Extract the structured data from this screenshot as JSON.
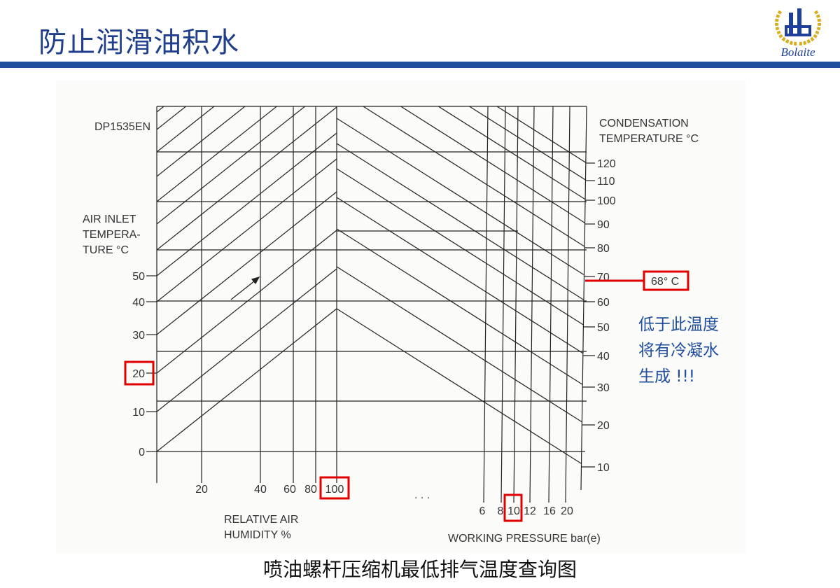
{
  "slide": {
    "title": "防止润滑油积水",
    "caption": "喷油螺杆压缩机最低排气温度查询图",
    "note_lines": [
      "低于此温度",
      "将有冷凝水",
      "生成 !!!"
    ],
    "logo_text": "Bolaite",
    "accent_color": "#1f4e9c",
    "highlight_color": "#e00000"
  },
  "chart_data": {
    "type": "line",
    "code": "DP1535EN",
    "left_axis": {
      "label_lines": [
        "AIR INLET",
        "TEMPERA-",
        "TURE   °C"
      ],
      "ticks": [
        "50",
        "40",
        "30",
        "20",
        "10",
        "0"
      ]
    },
    "humidity_axis": {
      "label_lines": [
        "RELATIVE AIR",
        "HUMIDITY  %"
      ],
      "ticks": [
        "20",
        "40",
        "60",
        "80",
        "100"
      ]
    },
    "pressure_axis": {
      "label": "WORKING PRESSURE   bar(e)",
      "ticks": [
        "6",
        "8",
        "10",
        "12",
        "16",
        "20"
      ]
    },
    "right_axis": {
      "label_lines": [
        "CONDENSATION",
        "TEMPERATURE   °C"
      ],
      "ticks": [
        "120",
        "110",
        "100",
        "90",
        "80",
        "70",
        "60",
        "50",
        "40",
        "30",
        "20",
        "10"
      ]
    },
    "ellipsis": ". . .",
    "example": {
      "air_inlet_temperature": "20",
      "relative_humidity": "100",
      "working_pressure": "10",
      "result_label": "68°  C",
      "result_value": 68
    }
  }
}
